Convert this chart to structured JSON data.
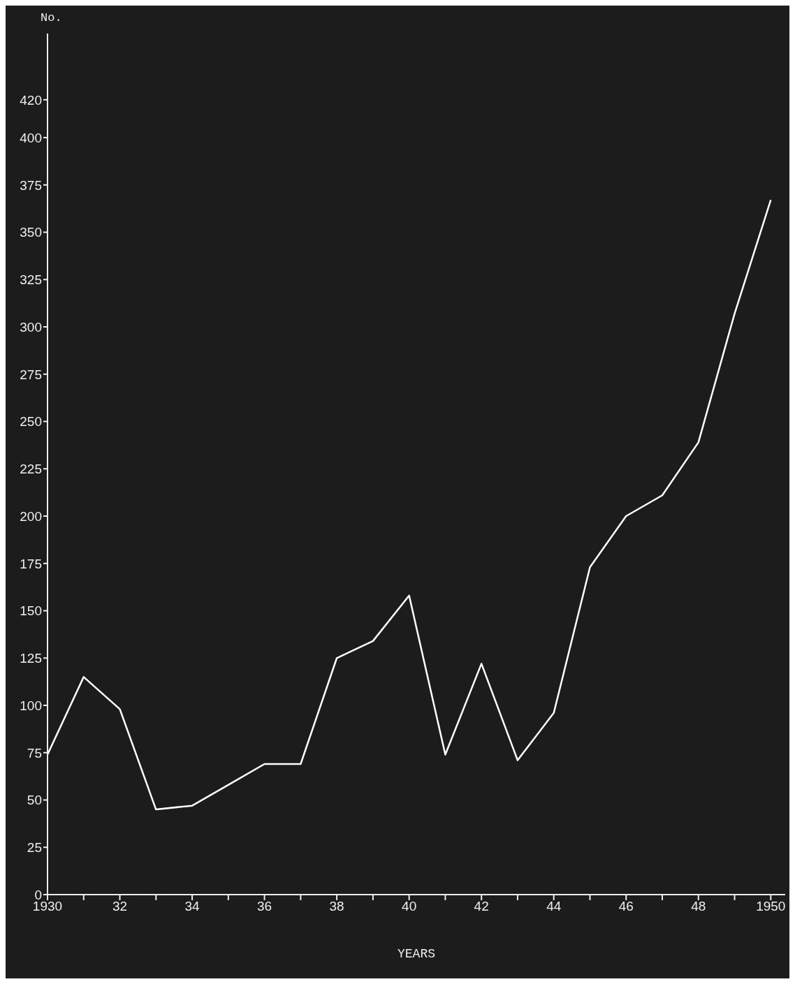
{
  "chart_data": {
    "type": "line",
    "ylabel": "No.",
    "xlabel": "YEARS",
    "x": [
      1930,
      1931,
      1932,
      1933,
      1934,
      1935,
      1936,
      1937,
      1938,
      1939,
      1940,
      1941,
      1942,
      1943,
      1944,
      1945,
      1946,
      1947,
      1948,
      1949,
      1950
    ],
    "series": [
      {
        "color": "#ffffff",
        "values": [
          74,
          115,
          98,
          45,
          47,
          58,
          69,
          69,
          125,
          134,
          158,
          74,
          122,
          71,
          96,
          173,
          200,
          211,
          239,
          307,
          367
        ]
      }
    ],
    "xlim": [
      1930,
      1950.4
    ],
    "xticks": [
      {
        "value": 1930,
        "label": "1930"
      },
      {
        "value": 1931,
        "label": null
      },
      {
        "value": 1932,
        "label": "32"
      },
      {
        "value": 1933,
        "label": null
      },
      {
        "value": 1934,
        "label": "34"
      },
      {
        "value": 1935,
        "label": null
      },
      {
        "value": 1936,
        "label": "36"
      },
      {
        "value": 1937,
        "label": null
      },
      {
        "value": 1938,
        "label": "38"
      },
      {
        "value": 1939,
        "label": null
      },
      {
        "value": 1940,
        "label": "40"
      },
      {
        "value": 1941,
        "label": null
      },
      {
        "value": 1942,
        "label": "42"
      },
      {
        "value": 1943,
        "label": null
      },
      {
        "value": 1944,
        "label": "44"
      },
      {
        "value": 1945,
        "label": null
      },
      {
        "value": 1946,
        "label": "46"
      },
      {
        "value": 1947,
        "label": null
      },
      {
        "value": 1948,
        "label": "48"
      },
      {
        "value": 1949,
        "label": null
      },
      {
        "value": 1950,
        "label": "1950"
      }
    ],
    "ylim": [
      0,
      455
    ],
    "yticks": [
      0,
      25,
      50,
      75,
      100,
      125,
      150,
      175,
      200,
      225,
      250,
      275,
      300,
      325,
      350,
      375,
      400,
      420
    ],
    "grid": false,
    "legend": false,
    "marker": "none",
    "line_style": "solid"
  }
}
